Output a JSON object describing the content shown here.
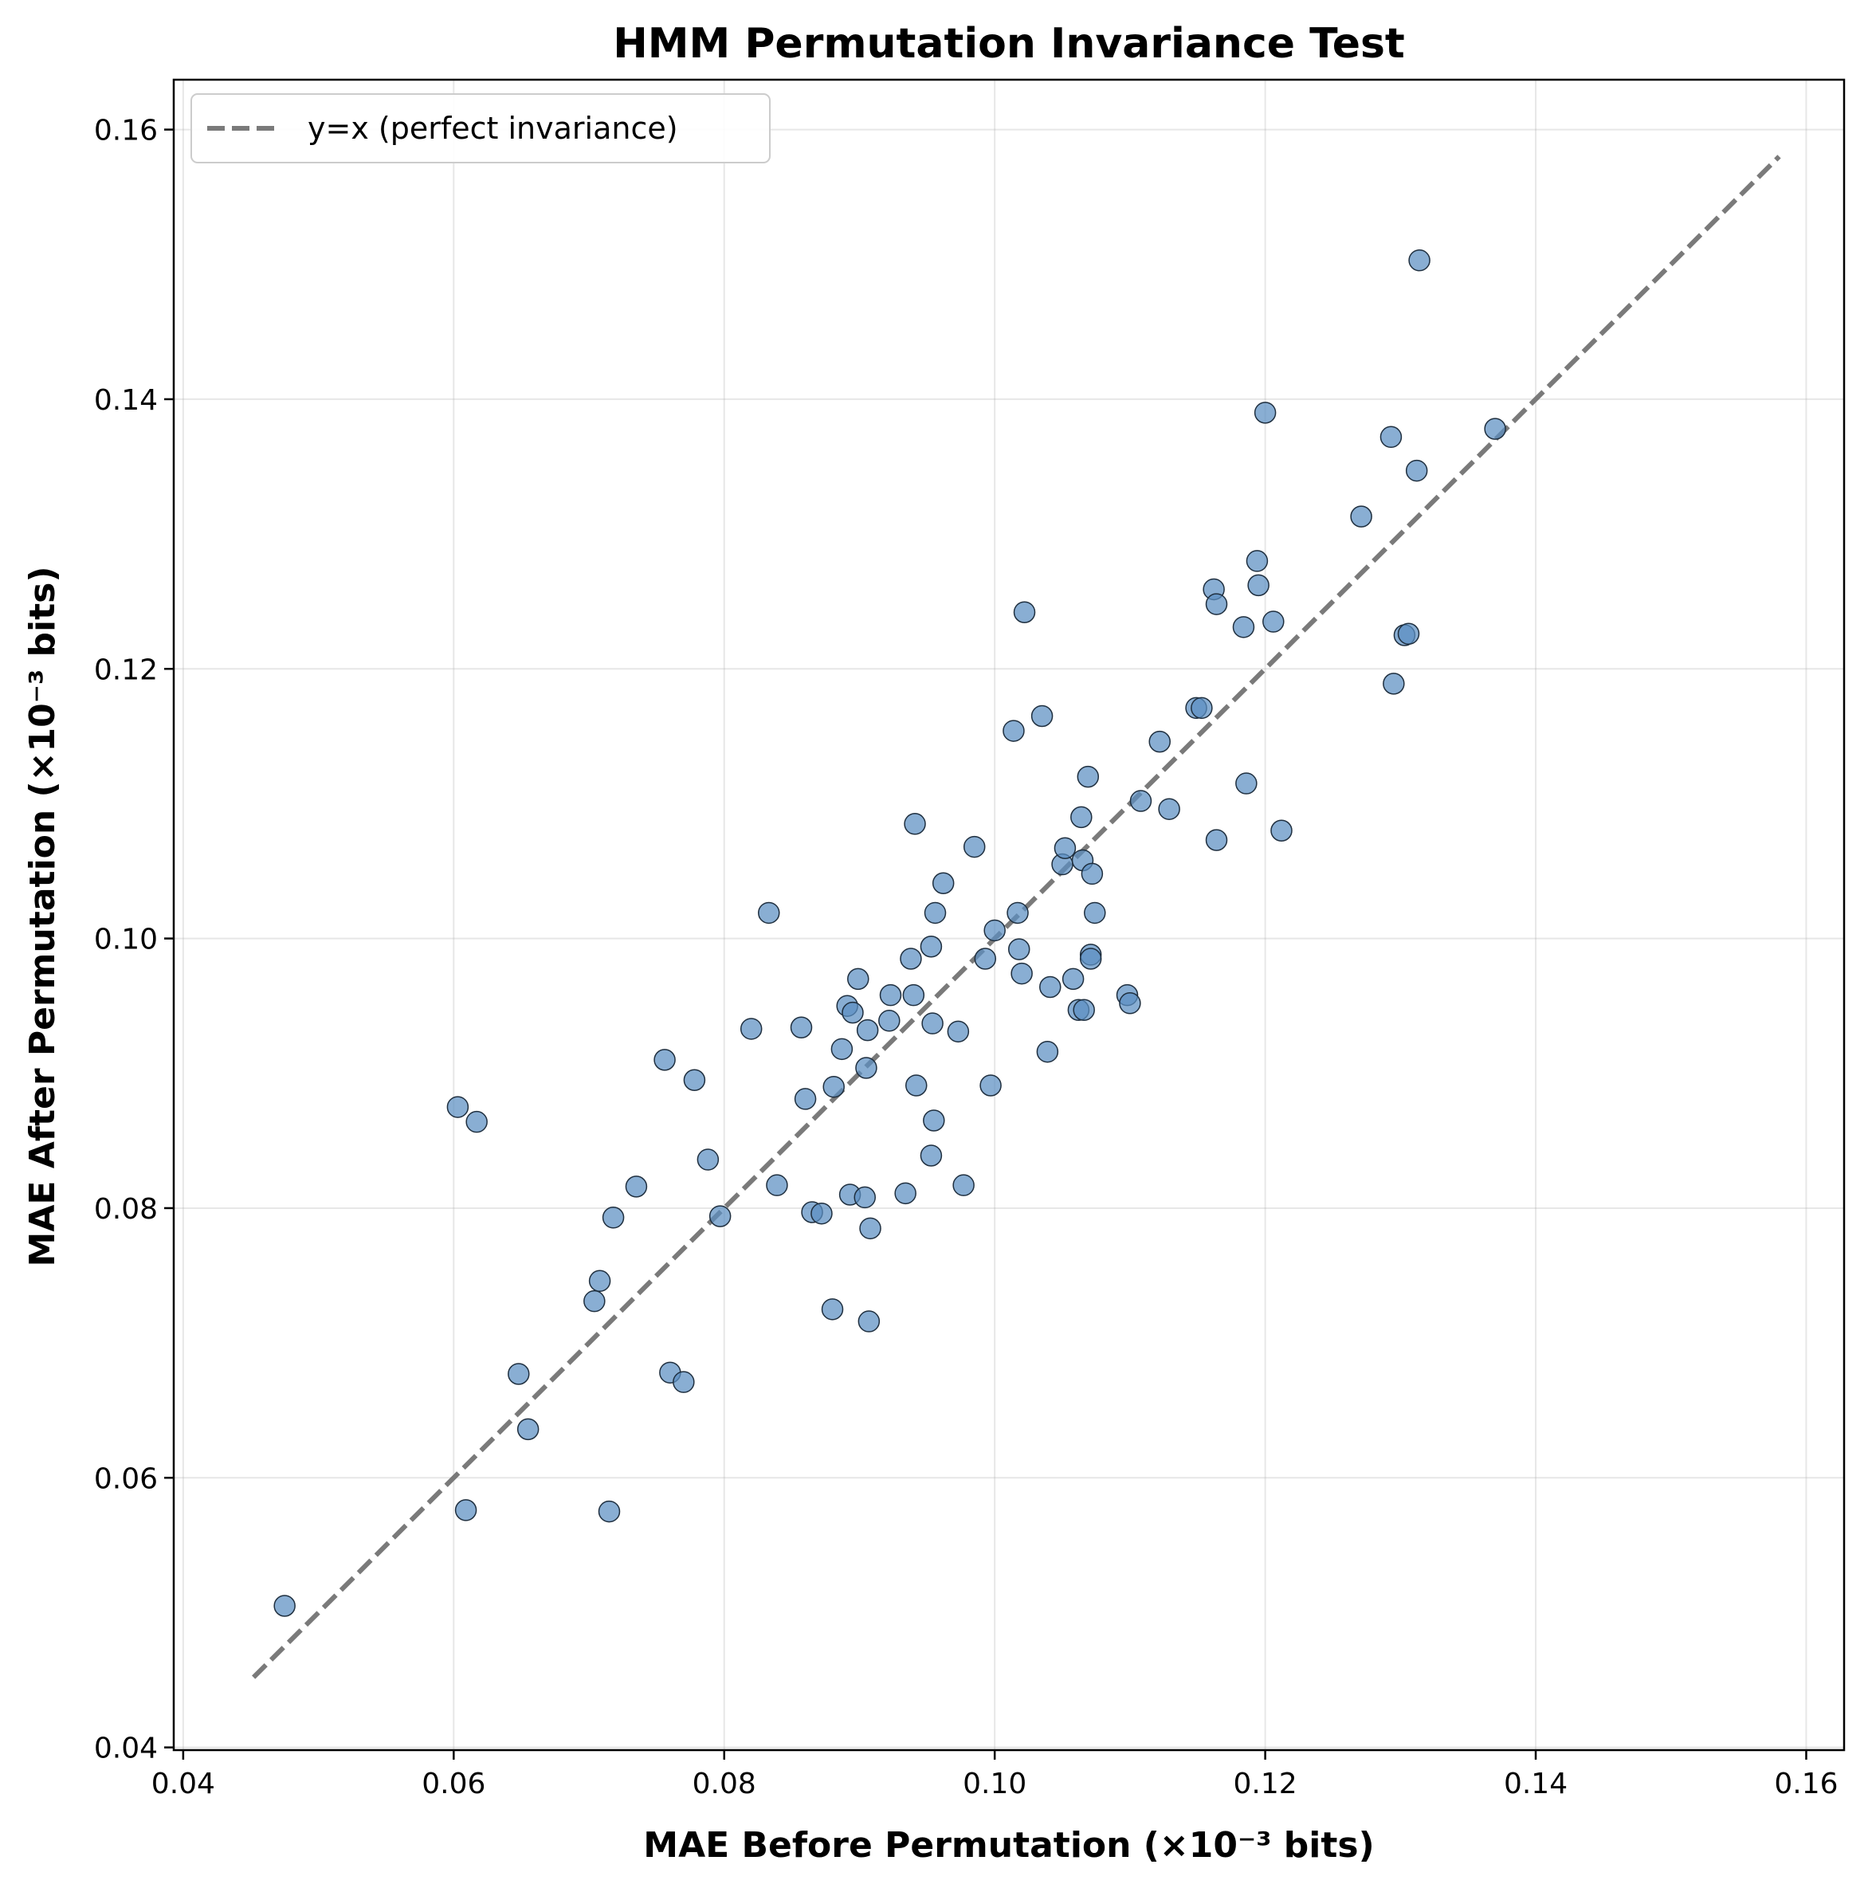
{
  "chart_data": {
    "type": "scatter",
    "title": "HMM Permutation Invariance Test",
    "xlabel": "MAE Before Permutation (×10⁻³ bits)",
    "ylabel": "MAE After Permutation (×10⁻³ bits)",
    "xlim": [
      0.0393,
      0.1628
    ],
    "ylim": [
      0.0398,
      0.1637
    ],
    "xticks": [
      "0.04",
      "0.06",
      "0.08",
      "0.10",
      "0.12",
      "0.14",
      "0.16"
    ],
    "yticks": [
      "0.04",
      "0.06",
      "0.08",
      "0.10",
      "0.12",
      "0.14",
      "0.16"
    ],
    "xtick_values": [
      0.04,
      0.06,
      0.08,
      0.1,
      0.12,
      0.14,
      0.16
    ],
    "ytick_values": [
      0.04,
      0.06,
      0.08,
      0.1,
      0.12,
      0.14,
      0.16
    ],
    "grid": true,
    "legend_placement": "upper-left",
    "reference_line": {
      "label": "y=x (perfect invariance)",
      "from": 0.0452,
      "to": 0.158,
      "color": "#7a7a7a",
      "style": "dashed"
    },
    "point_color": "#5b8fc2",
    "point_edge_color": "#1f2f3f",
    "x": [
      0.0475,
      0.0603,
      0.0617,
      0.0609,
      0.0648,
      0.0655,
      0.0704,
      0.0708,
      0.0718,
      0.0715,
      0.0735,
      0.0756,
      0.076,
      0.077,
      0.0778,
      0.0788,
      0.0797,
      0.082,
      0.0833,
      0.0839,
      0.0857,
      0.086,
      0.0865,
      0.0872,
      0.088,
      0.0881,
      0.0887,
      0.0891,
      0.0893,
      0.0895,
      0.0899,
      0.0904,
      0.0905,
      0.0906,
      0.0907,
      0.0908,
      0.0922,
      0.0923,
      0.0934,
      0.0938,
      0.094,
      0.0941,
      0.0942,
      0.0953,
      0.0953,
      0.0954,
      0.0955,
      0.0956,
      0.0962,
      0.0973,
      0.0977,
      0.0985,
      0.0993,
      0.0997,
      0.1,
      0.1014,
      0.1017,
      0.1018,
      0.102,
      0.1022,
      0.1035,
      0.1039,
      0.1041,
      0.105,
      0.1052,
      0.1058,
      0.1062,
      0.1064,
      0.1065,
      0.1066,
      0.1069,
      0.1071,
      0.1071,
      0.1072,
      0.1074,
      0.1098,
      0.11,
      0.1108,
      0.1122,
      0.1129,
      0.1149,
      0.1153,
      0.1162,
      0.1164,
      0.1164,
      0.1184,
      0.1186,
      0.1194,
      0.1195,
      0.12,
      0.1206,
      0.1212,
      0.1271,
      0.1293,
      0.1295,
      0.1303,
      0.1306,
      0.1312,
      0.1314,
      0.137
    ],
    "y": [
      0.0505,
      0.0875,
      0.0864,
      0.0576,
      0.0677,
      0.0636,
      0.0731,
      0.0746,
      0.0793,
      0.0575,
      0.0816,
      0.091,
      0.0678,
      0.0671,
      0.0895,
      0.0836,
      0.0794,
      0.0933,
      0.1019,
      0.0817,
      0.0934,
      0.0881,
      0.0797,
      0.0796,
      0.0725,
      0.089,
      0.0918,
      0.095,
      0.081,
      0.0945,
      0.097,
      0.0808,
      0.0904,
      0.0932,
      0.0716,
      0.0785,
      0.0939,
      0.0958,
      0.0811,
      0.0985,
      0.0958,
      0.1085,
      0.0891,
      0.0839,
      0.0994,
      0.0937,
      0.0865,
      0.1019,
      0.1041,
      0.0931,
      0.0817,
      0.1068,
      0.0985,
      0.0891,
      0.1006,
      0.1154,
      0.1019,
      0.0992,
      0.0974,
      0.1242,
      0.1165,
      0.0916,
      0.0964,
      0.1055,
      0.1067,
      0.097,
      0.0947,
      0.109,
      0.1058,
      0.0947,
      0.112,
      0.0988,
      0.0985,
      0.1048,
      0.1019,
      0.0958,
      0.0952,
      0.1102,
      0.1146,
      0.1096,
      0.1171,
      0.1171,
      0.1259,
      0.1248,
      0.1073,
      0.1231,
      0.1115,
      0.128,
      0.1262,
      0.139,
      0.1235,
      0.108,
      0.1313,
      0.1372,
      0.1189,
      0.1225,
      0.1226,
      0.1347,
      0.1503,
      0.1378
    ]
  }
}
